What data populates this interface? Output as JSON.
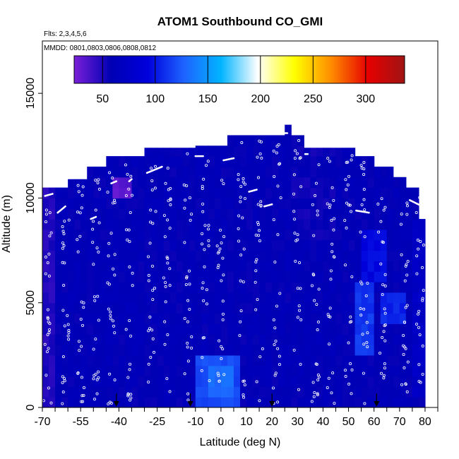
{
  "chart_data": {
    "type": "heatmap",
    "title": "ATOM1 Southbound CO_GMI",
    "flights_note": "Flts: 2,3,4,5,6",
    "dates_note": "MMDD: 0801,0803,0806,0808,0812",
    "xlabel": "Latitude (deg N)",
    "ylabel": "Altitude (m)",
    "xlim": [
      -70,
      85
    ],
    "ylim": [
      0,
      17500
    ],
    "x_ticks": [
      -70,
      -55,
      -40,
      -25,
      -10,
      0,
      10,
      20,
      30,
      40,
      50,
      60,
      70,
      80
    ],
    "x_tick_labels": [
      "-70",
      "-55",
      "-40",
      "-25",
      "-10",
      "0",
      "10",
      "20",
      "30",
      "40",
      "50",
      "60",
      "70",
      "80"
    ],
    "y_ticks": [
      0,
      5000,
      10000,
      15000
    ],
    "y_tick_labels": [
      "0",
      "5000",
      "10000",
      "15000"
    ],
    "colorbar": {
      "min": 23,
      "max": 337,
      "ticks": [
        50,
        100,
        150,
        200,
        250,
        300
      ],
      "tick_labels": [
        "50",
        "100",
        "150",
        "200",
        "250",
        "300"
      ],
      "colors": [
        "#7a1fd8",
        "#0000b4",
        "#0000dc",
        "#1e64ff",
        "#00b4ff",
        "#ffffff",
        "#ffff00",
        "#ff8c00",
        "#e60000",
        "#a01414"
      ]
    },
    "base_value": 60,
    "domain_top": [
      {
        "lat": -70,
        "alt": 10500
      },
      {
        "lat": -61,
        "alt": 10900
      },
      {
        "lat": -53,
        "alt": 11500
      },
      {
        "lat": -46,
        "alt": 12000
      },
      {
        "lat": -30,
        "alt": 12400
      },
      {
        "lat": -10,
        "alt": 12500
      },
      {
        "lat": 2,
        "alt": 13000
      },
      {
        "lat": 24,
        "alt": 13500
      },
      {
        "lat": 27,
        "alt": 13000
      },
      {
        "lat": 33,
        "alt": 12400
      },
      {
        "lat": 52,
        "alt": 12000
      },
      {
        "lat": 60,
        "alt": 11500
      },
      {
        "lat": 68,
        "alt": 11000
      },
      {
        "lat": 72,
        "alt": 10500
      },
      {
        "lat": 78,
        "alt": 9000
      },
      {
        "lat": 80,
        "alt": 6000
      },
      {
        "lat": 81,
        "alt": 1000
      }
    ],
    "regions": [
      {
        "lat_min": -10,
        "lat_max": 8,
        "alt_min": 0,
        "alt_max": 2500,
        "value": 118
      },
      {
        "lat_min": -6,
        "lat_max": 6,
        "alt_min": 300,
        "alt_max": 2000,
        "value": 130
      },
      {
        "lat_min": 52,
        "lat_max": 60,
        "alt_min": 2500,
        "alt_max": 6000,
        "value": 112
      },
      {
        "lat_min": 56,
        "lat_max": 66,
        "alt_min": 6000,
        "alt_max": 8500,
        "value": 95
      },
      {
        "lat_min": 62,
        "lat_max": 72,
        "alt_min": 3800,
        "alt_max": 5500,
        "value": 105
      },
      {
        "lat_min": -42,
        "lat_max": -36,
        "alt_min": 9800,
        "alt_max": 10800,
        "value": 32
      },
      {
        "lat_min": -70,
        "lat_max": -65,
        "alt_min": 0,
        "alt_max": 10500,
        "value": 48
      },
      {
        "lat_min": 74,
        "lat_max": 81,
        "alt_min": 500,
        "alt_max": 9000,
        "value": 72
      },
      {
        "lat_min": 28,
        "lat_max": 45,
        "alt_min": 8000,
        "alt_max": 12400,
        "value": 56
      }
    ],
    "profile_lats": [
      -68,
      -61,
      -55,
      -49,
      -43,
      -36,
      -27,
      -21,
      -13,
      -6,
      0,
      8,
      15,
      22,
      30,
      37,
      43,
      50,
      56,
      63,
      72,
      78
    ],
    "flight_segments": [
      {
        "lat": [
          -69,
          -66
        ],
        "alt": [
          10100,
          10200
        ]
      },
      {
        "lat": [
          -64,
          -61
        ],
        "alt": [
          9300,
          9600
        ]
      },
      {
        "lat": [
          -51,
          -49
        ],
        "alt": [
          9000,
          9100
        ]
      },
      {
        "lat": [
          -43,
          -41
        ],
        "alt": [
          10700,
          10800
        ]
      },
      {
        "lat": [
          -36,
          -35
        ],
        "alt": [
          10800,
          10900
        ]
      },
      {
        "lat": [
          -29,
          -23
        ],
        "alt": [
          11200,
          11500
        ]
      },
      {
        "lat": [
          -10,
          -7
        ],
        "alt": [
          12000,
          12000
        ]
      },
      {
        "lat": [
          1,
          5
        ],
        "alt": [
          11800,
          11900
        ]
      },
      {
        "lat": [
          11,
          14
        ],
        "alt": [
          10300,
          10400
        ]
      },
      {
        "lat": [
          17,
          20
        ],
        "alt": [
          9600,
          9700
        ]
      },
      {
        "lat": [
          25,
          26
        ],
        "alt": [
          13100,
          13100
        ]
      },
      {
        "lat": [
          33,
          34
        ],
        "alt": [
          12100,
          12100
        ]
      },
      {
        "lat": [
          53,
          58
        ],
        "alt": [
          9400,
          9300
        ]
      },
      {
        "lat": [
          74,
          79
        ],
        "alt": [
          9900,
          9600
        ]
      }
    ],
    "arrow_lats": [
      -41,
      -12,
      20,
      61
    ]
  }
}
